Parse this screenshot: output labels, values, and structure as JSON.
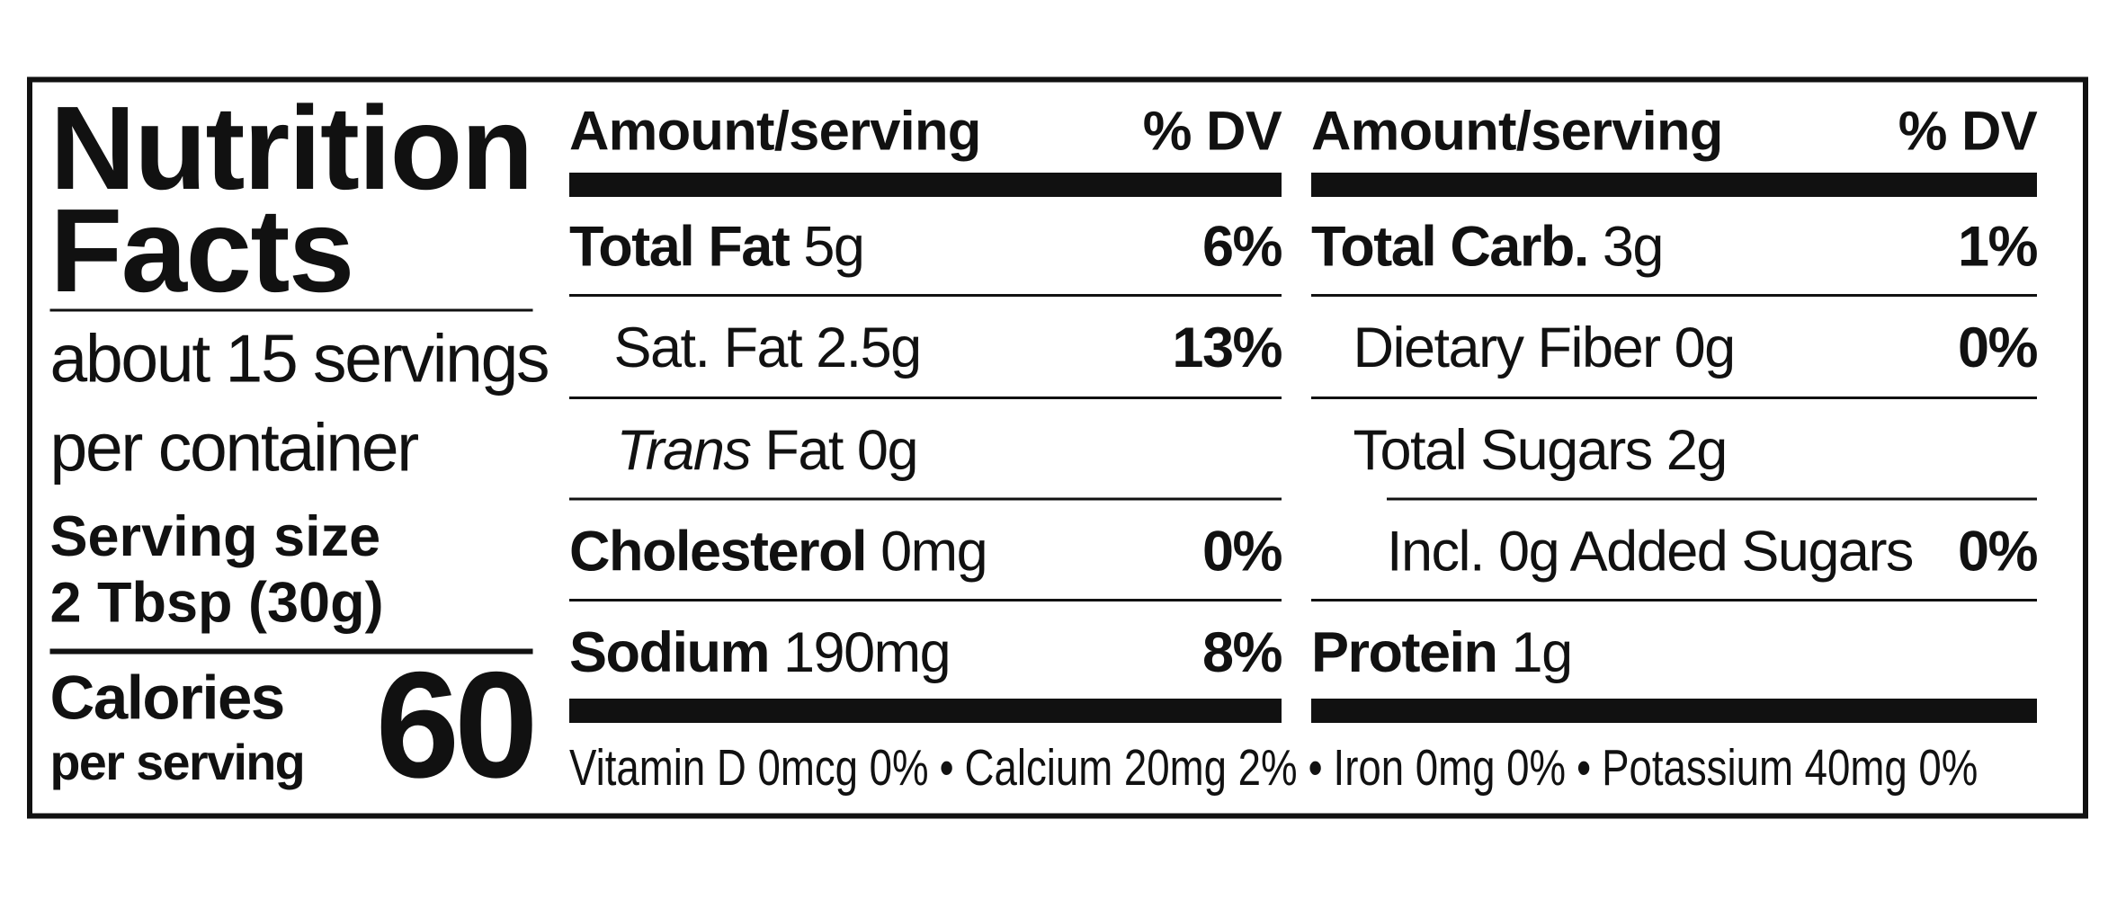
{
  "title": "Nutrition Facts",
  "servings": [
    "about 15 servings",
    "per container"
  ],
  "serving_size": {
    "label": "Serving size",
    "value": "2 Tbsp (30g)"
  },
  "calories": {
    "label": "Calories",
    "sublabel": "per serving",
    "value": "60"
  },
  "columns": [
    {
      "header": {
        "amount": "Amount/serving",
        "dv": "% DV"
      },
      "rows": [
        {
          "name": "Total Fat",
          "amount": "5g",
          "dv": "6%"
        },
        {
          "name": "Sat. Fat",
          "amount": "2.5g",
          "dv": "13%"
        },
        {
          "name_italic": "Trans",
          "name": "Fat",
          "amount": "0g"
        },
        {
          "name": "Cholesterol",
          "amount": "0mg",
          "dv": "0%"
        },
        {
          "name": "Sodium",
          "amount": "190mg",
          "dv": "8%"
        }
      ]
    },
    {
      "header": {
        "amount": "Amount/serving",
        "dv": "% DV"
      },
      "rows": [
        {
          "name": "Total Carb.",
          "amount": "3g",
          "dv": "1%"
        },
        {
          "name": "Dietary Fiber",
          "amount": "0g",
          "dv": "0%"
        },
        {
          "name": "Total Sugars",
          "amount": "2g"
        },
        {
          "name": "Incl. 0g Added Sugars",
          "dv": "0%"
        },
        {
          "name": "Protein",
          "amount": "1g"
        }
      ]
    }
  ],
  "footer": {
    "items": [
      "Vitamin D 0mcg 0%",
      "Calcium 20mg 2%",
      "Iron 0mg 0%",
      "Potassium 40mg 0%"
    ],
    "separator": "•"
  }
}
